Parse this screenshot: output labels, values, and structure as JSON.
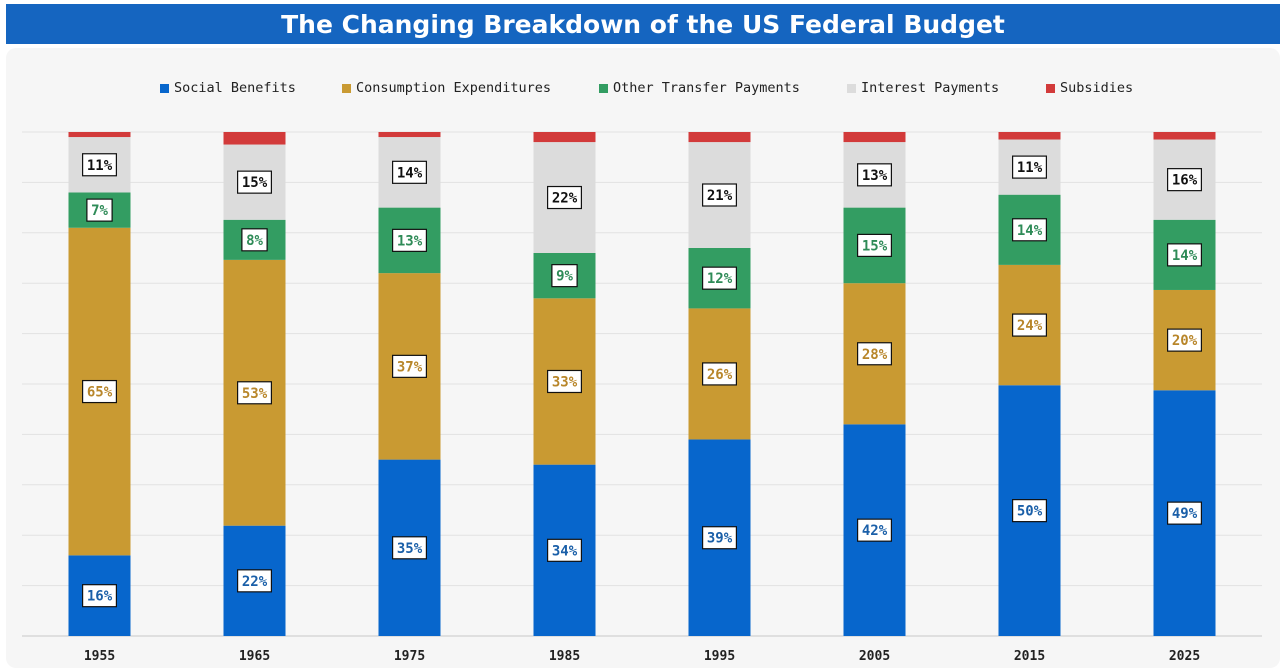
{
  "chart_data": {
    "type": "bar",
    "stacked": true,
    "title": "The Changing Breakdown of the US Federal Budget",
    "categories": [
      "1955",
      "1965",
      "1975",
      "1985",
      "1995",
      "2005",
      "2015",
      "2025"
    ],
    "ylim": [
      0,
      100
    ],
    "grid": true,
    "legend_position": "top",
    "series": [
      {
        "name": "Social Benefits",
        "color": "#0766cc",
        "text_color": "#1a5fa8",
        "values": [
          16,
          22,
          35,
          34,
          39,
          42,
          50,
          49
        ],
        "labels": [
          "16%",
          "22%",
          "35%",
          "34%",
          "39%",
          "42%",
          "50%",
          "49%"
        ]
      },
      {
        "name": "Consumption Expenditures",
        "color": "#c99a32",
        "text_color": "#b8862a",
        "values": [
          65,
          53,
          37,
          33,
          26,
          28,
          24,
          20
        ],
        "labels": [
          "65%",
          "53%",
          "37%",
          "33%",
          "26%",
          "28%",
          "24%",
          "20%"
        ]
      },
      {
        "name": "Other Transfer Payments",
        "color": "#339d62",
        "text_color": "#2e8b57",
        "values": [
          7,
          8,
          13,
          9,
          12,
          15,
          14,
          14
        ],
        "labels": [
          "7%",
          "8%",
          "13%",
          "9%",
          "12%",
          "15%",
          "14%",
          "14%"
        ]
      },
      {
        "name": "Interest Payments",
        "color": "#dcdcdc",
        "text_color": "#111111",
        "values": [
          11,
          15,
          14,
          22,
          21,
          13,
          11,
          16
        ],
        "labels": [
          "11%",
          "15%",
          "14%",
          "22%",
          "21%",
          "13%",
          "11%",
          "16%"
        ]
      },
      {
        "name": "Subsidies",
        "color": "#d23a3a",
        "text_color": "#d23a3a",
        "values": [
          1,
          2.5,
          1,
          2,
          2,
          2,
          1.5,
          1.5
        ],
        "labels": [
          "",
          "",
          "",
          "",
          "",
          "",
          "",
          ""
        ]
      }
    ]
  }
}
